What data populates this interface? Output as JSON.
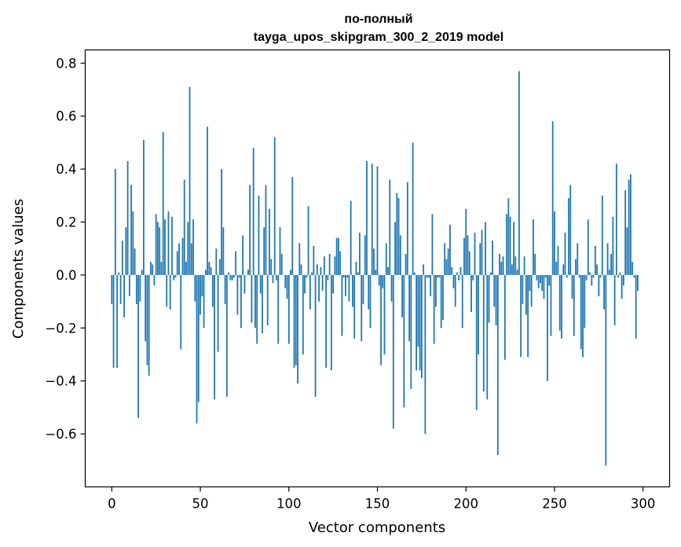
{
  "chart_data": {
    "type": "bar",
    "title_lines": [
      "по-полный",
      "tayga_upos_skipgram_300_2_2019 model"
    ],
    "xlabel": "Vector components",
    "ylabel": "Components values",
    "xlim": [
      -15,
      315
    ],
    "ylim": [
      -0.8,
      0.85
    ],
    "xticks": [
      0,
      50,
      100,
      150,
      200,
      250,
      300
    ],
    "yticks": [
      -0.6,
      -0.4,
      -0.2,
      0.0,
      0.2,
      0.4,
      0.6,
      0.8
    ],
    "ytick_labels": [
      "−0.6",
      "−0.4",
      "−0.2",
      "0.0",
      "0.2",
      "0.4",
      "0.6",
      "0.8"
    ],
    "bar_color": "#1f77b4",
    "grid": false,
    "values": [
      -0.11,
      -0.35,
      0.4,
      -0.35,
      0.01,
      -0.11,
      0.13,
      -0.16,
      0.18,
      0.43,
      -0.08,
      0.34,
      0.24,
      0.1,
      -0.11,
      -0.54,
      -0.1,
      0.02,
      0.51,
      -0.25,
      -0.34,
      -0.38,
      0.05,
      0.04,
      -0.04,
      0.23,
      0.2,
      0.18,
      0.05,
      0.54,
      0.21,
      -0.12,
      0.24,
      -0.13,
      0.22,
      -0.02,
      -0.01,
      0.09,
      0.12,
      -0.28,
      0.14,
      0.36,
      0.05,
      0.2,
      0.71,
      0.12,
      0.21,
      -0.1,
      -0.56,
      -0.48,
      -0.15,
      -0.08,
      -0.2,
      0.02,
      0.56,
      0.05,
      0.03,
      -0.12,
      -0.47,
      0.1,
      -0.29,
      0.06,
      0.4,
      0.18,
      -0.11,
      -0.46,
      0.01,
      -0.02,
      -0.02,
      -0.01,
      0.09,
      -0.15,
      -0.01,
      -0.2,
      0.15,
      -0.07,
      0.0,
      0.02,
      0.34,
      -0.18,
      0.48,
      -0.2,
      -0.26,
      0.3,
      -0.07,
      -0.22,
      0.18,
      0.34,
      -0.19,
      0.25,
      0.06,
      -0.03,
      0.52,
      -0.02,
      -0.26,
      0.18,
      0.08,
      0.0,
      -0.05,
      -0.09,
      -0.26,
      0.02,
      0.37,
      -0.35,
      -0.34,
      -0.41,
      0.12,
      0.04,
      -0.3,
      -0.07,
      -0.01,
      0.26,
      -0.13,
      0.01,
      0.11,
      -0.46,
      0.04,
      -0.1,
      0.03,
      -0.06,
      0.07,
      -0.35,
      -0.02,
      0.08,
      -0.36,
      -0.07,
      0.07,
      0.14,
      0.14,
      0.09,
      -0.23,
      -0.01,
      -0.08,
      -0.01,
      -0.1,
      0.28,
      -0.12,
      -0.24,
      0.05,
      0.01,
      0.16,
      -0.25,
      -0.11,
      0.15,
      0.43,
      -0.13,
      -0.2,
      0.42,
      0.1,
      0.02,
      0.41,
      -0.04,
      -0.34,
      -0.05,
      -0.3,
      0.12,
      0.03,
      0.36,
      -0.1,
      -0.58,
      0.2,
      0.31,
      0.29,
      0.15,
      -0.16,
      -0.5,
      0.08,
      0.35,
      -0.25,
      -0.43,
      0.5,
      0.01,
      -0.36,
      -0.27,
      -0.36,
      -0.39,
      0.04,
      -0.6,
      -0.01,
      -0.01,
      -0.08,
      0.23,
      -0.26,
      -0.12,
      -0.01,
      -0.01,
      -0.2,
      -0.17,
      0.12,
      0.06,
      0.1,
      0.19,
      0.03,
      -0.05,
      -0.12,
      0.01,
      -0.02,
      0.03,
      -0.2,
      0.14,
      0.25,
      0.15,
      0.09,
      -0.14,
      -0.02,
      0.16,
      -0.51,
      -0.3,
      0.12,
      0.17,
      -0.44,
      0.2,
      -0.47,
      -0.18,
      0.01,
      0.13,
      -0.12,
      -0.19,
      -0.68,
      0.08,
      0.05,
      0.07,
      -0.32,
      0.23,
      0.29,
      0.22,
      0.04,
      0.2,
      0.07,
      0.02,
      0.77,
      -0.31,
      -0.11,
      0.07,
      -0.15,
      -0.31,
      -0.06,
      -0.12,
      0.21,
      0.08,
      -0.02,
      -0.05,
      -0.03,
      -0.06,
      -0.09,
      -0.01,
      -0.4,
      -0.04,
      -0.23,
      0.58,
      0.24,
      0.05,
      0.11,
      -0.21,
      -0.24,
      0.04,
      0.16,
      -0.01,
      0.29,
      0.34,
      -0.09,
      -0.23,
      0.06,
      0.12,
      -0.01,
      -0.28,
      -0.31,
      -0.2,
      -0.02,
      0.21,
      0.01,
      -0.04,
      -0.01,
      0.11,
      0.04,
      -0.08,
      -0.01,
      0.3,
      -0.13,
      -0.72,
      0.12,
      0.02,
      0.08,
      0.22,
      -0.19,
      0.42,
      -0.01,
      0.01,
      -0.09,
      -0.04,
      0.32,
      0.18,
      0.36,
      0.38,
      0.05,
      -0.01,
      -0.24,
      -0.06
    ]
  }
}
